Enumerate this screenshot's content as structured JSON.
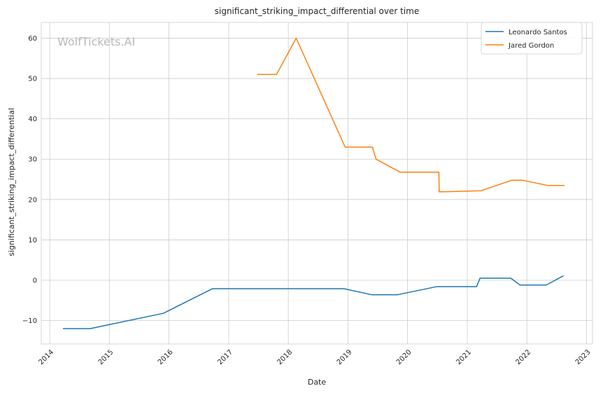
{
  "chart_data": {
    "type": "line",
    "title": "significant_striking_impact_differential over time",
    "xlabel": "Date",
    "ylabel": "significant_striking_impact_differential",
    "xlim": [
      "2013-11-10",
      "2023-02-07"
    ],
    "ylim": [
      -15.8,
      63.9
    ],
    "x_ticks": [
      "2014",
      "2015",
      "2016",
      "2017",
      "2018",
      "2019",
      "2020",
      "2021",
      "2022",
      "2023"
    ],
    "y_ticks": [
      -10,
      0,
      10,
      20,
      30,
      40,
      50,
      60
    ],
    "grid": true,
    "legend_position": "top-right",
    "watermark": "WolfTickets.AI",
    "series": [
      {
        "name": "Leonardo Santos",
        "color": "#1f77b4",
        "points": [
          {
            "x": "2014-03-23",
            "y": -12.0
          },
          {
            "x": "2014-09-05",
            "y": -12.0
          },
          {
            "x": "2015-11-28",
            "y": -8.2
          },
          {
            "x": "2016-09-24",
            "y": -2.1
          },
          {
            "x": "2018-12-08",
            "y": -2.1
          },
          {
            "x": "2019-05-25",
            "y": -3.6
          },
          {
            "x": "2019-11-02",
            "y": -3.6
          },
          {
            "x": "2020-06-27",
            "y": -1.6
          },
          {
            "x": "2021-02-27",
            "y": -1.6
          },
          {
            "x": "2021-03-20",
            "y": 0.5
          },
          {
            "x": "2021-09-25",
            "y": 0.5
          },
          {
            "x": "2021-11-20",
            "y": -1.2
          },
          {
            "x": "2022-04-30",
            "y": -1.2
          },
          {
            "x": "2022-08-13",
            "y": 1.1
          }
        ]
      },
      {
        "name": "Jared Gordon",
        "color": "#ff7f0e",
        "points": [
          {
            "x": "2017-06-25",
            "y": 51.0
          },
          {
            "x": "2017-10-21",
            "y": 51.0
          },
          {
            "x": "2018-02-18",
            "y": 60.0
          },
          {
            "x": "2018-12-15",
            "y": 33.0
          },
          {
            "x": "2019-05-31",
            "y": 33.0
          },
          {
            "x": "2019-06-22",
            "y": 30.0
          },
          {
            "x": "2019-11-16",
            "y": 26.8
          },
          {
            "x": "2020-07-11",
            "y": 26.8
          },
          {
            "x": "2020-07-13",
            "y": 21.9
          },
          {
            "x": "2021-03-27",
            "y": 22.2
          },
          {
            "x": "2021-10-02",
            "y": 24.8
          },
          {
            "x": "2021-12-04",
            "y": 24.8
          },
          {
            "x": "2022-05-07",
            "y": 23.5
          },
          {
            "x": "2022-08-20",
            "y": 23.5
          }
        ]
      }
    ]
  }
}
